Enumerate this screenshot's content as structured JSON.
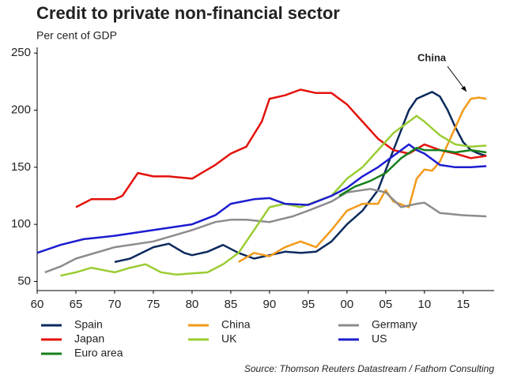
{
  "chart_data": {
    "type": "line",
    "title": "Credit to private non-financial sector",
    "subtitle": "Per cent of GDP",
    "annotation": "China",
    "source": "Source: Thomson Reuters Datastream / Fathom Consulting",
    "xlim": [
      1960,
      2019
    ],
    "ylim": [
      42,
      255
    ],
    "xticks": [
      {
        "value": 1960,
        "label": "60"
      },
      {
        "value": 1965,
        "label": "65"
      },
      {
        "value": 1970,
        "label": "70"
      },
      {
        "value": 1975,
        "label": "75"
      },
      {
        "value": 1980,
        "label": "80"
      },
      {
        "value": 1985,
        "label": "85"
      },
      {
        "value": 1990,
        "label": "90"
      },
      {
        "value": 1995,
        "label": "95"
      },
      {
        "value": 2000,
        "label": "00"
      },
      {
        "value": 2005,
        "label": "05"
      },
      {
        "value": 2010,
        "label": "10"
      },
      {
        "value": 2015,
        "label": "15"
      }
    ],
    "yticks": [
      50,
      100,
      150,
      200,
      250
    ],
    "series": [
      {
        "name": "Spain",
        "color": "#0b2a5c",
        "x": [
          1970,
          1972,
          1975,
          1977,
          1979,
          1980,
          1982,
          1984,
          1986,
          1988,
          1990,
          1992,
          1994,
          1996,
          1998,
          2000,
          2002,
          2004,
          2006,
          2008,
          2009,
          2010,
          2011,
          2012,
          2013,
          2014,
          2015,
          2016,
          2017,
          2018
        ],
        "values": [
          67,
          70,
          80,
          83,
          75,
          73,
          76,
          82,
          75,
          70,
          73,
          76,
          75,
          76,
          85,
          100,
          112,
          130,
          165,
          200,
          210,
          213,
          216,
          212,
          200,
          185,
          172,
          165,
          162,
          160
        ]
      },
      {
        "name": "China",
        "color": "#f39a1a",
        "x": [
          1986,
          1988,
          1990,
          1992,
          1994,
          1996,
          1998,
          2000,
          2002,
          2004,
          2005,
          2006,
          2008,
          2009,
          2010,
          2011,
          2012,
          2013,
          2014,
          2015,
          2016,
          2017,
          2018
        ],
        "values": [
          67,
          75,
          72,
          80,
          85,
          80,
          95,
          112,
          118,
          118,
          130,
          120,
          115,
          140,
          148,
          147,
          155,
          170,
          185,
          200,
          210,
          211,
          210
        ]
      },
      {
        "name": "Germany",
        "color": "#8c8c8c",
        "x": [
          1961,
          1963,
          1965,
          1970,
          1975,
          1980,
          1983,
          1985,
          1987,
          1990,
          1993,
          1995,
          1998,
          2000,
          2003,
          2005,
          2007,
          2009,
          2010,
          2012,
          2015,
          2018
        ],
        "values": [
          58,
          63,
          70,
          80,
          85,
          95,
          102,
          104,
          104,
          102,
          107,
          112,
          120,
          128,
          131,
          128,
          115,
          118,
          119,
          110,
          108,
          107
        ]
      },
      {
        "name": "Japan",
        "color": "#e3120b",
        "x": [
          1965,
          1967,
          1970,
          1971,
          1973,
          1975,
          1977,
          1980,
          1983,
          1985,
          1987,
          1989,
          1990,
          1992,
          1994,
          1996,
          1998,
          2000,
          2002,
          2004,
          2006,
          2008,
          2010,
          2012,
          2014,
          2016,
          2018
        ],
        "values": [
          115,
          122,
          122,
          125,
          145,
          142,
          142,
          140,
          152,
          162,
          168,
          190,
          210,
          213,
          218,
          215,
          215,
          205,
          190,
          175,
          165,
          162,
          170,
          165,
          162,
          158,
          160
        ]
      },
      {
        "name": "UK",
        "color": "#9acd32",
        "x": [
          1963,
          1965,
          1967,
          1970,
          1972,
          1974,
          1976,
          1978,
          1980,
          1982,
          1984,
          1986,
          1988,
          1990,
          1992,
          1994,
          1996,
          1998,
          2000,
          2002,
          2004,
          2006,
          2008,
          2009,
          2010,
          2012,
          2014,
          2016,
          2018
        ],
        "values": [
          55,
          58,
          62,
          58,
          62,
          65,
          58,
          56,
          57,
          58,
          65,
          75,
          95,
          115,
          118,
          115,
          120,
          125,
          140,
          150,
          165,
          180,
          190,
          195,
          190,
          178,
          170,
          168,
          169
        ]
      },
      {
        "name": "US",
        "color": "#1c1cd0",
        "x": [
          1960,
          1963,
          1966,
          1970,
          1975,
          1980,
          1983,
          1985,
          1988,
          1990,
          1992,
          1995,
          1998,
          2000,
          2002,
          2004,
          2006,
          2008,
          2009,
          2010,
          2012,
          2014,
          2016,
          2018
        ],
        "values": [
          75,
          82,
          87,
          90,
          95,
          100,
          108,
          118,
          122,
          123,
          118,
          117,
          125,
          132,
          142,
          150,
          160,
          170,
          165,
          162,
          152,
          150,
          150,
          151
        ]
      },
      {
        "name": "Euro area",
        "color": "#17801c",
        "x": [
          1999,
          2001,
          2003,
          2005,
          2007,
          2009,
          2010,
          2012,
          2014,
          2016,
          2018
        ],
        "values": [
          125,
          133,
          138,
          145,
          158,
          167,
          165,
          165,
          163,
          165,
          163
        ]
      }
    ]
  }
}
